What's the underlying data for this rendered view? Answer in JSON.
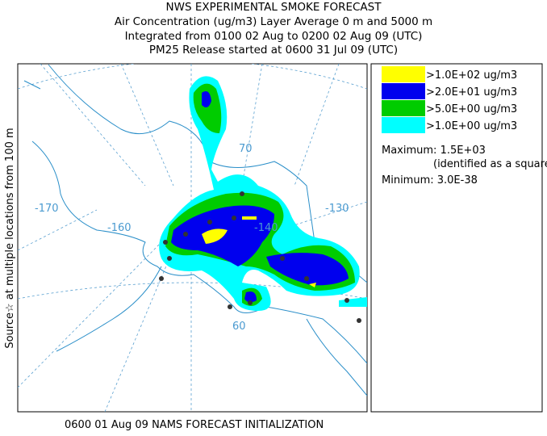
{
  "header": {
    "lines": [
      "NWS EXPERIMENTAL SMOKE FORECAST",
      "Air Concentration (ug/m3) Layer Average    0 m and  5000 m",
      "Integrated from 0100 02 Aug to 0200 02 Aug 09 (UTC)",
      "PM25 Release started at 0600 31 Jul 09 (UTC)"
    ]
  },
  "side_label": "Source☆ at multiple locations from   100 m",
  "legend": {
    "items": [
      ">1.0E+02 ug/m3",
      ">2.0E+01 ug/m3",
      ">5.0E+00 ug/m3",
      ">1.0E+00 ug/m3"
    ],
    "maximum": "Maximum: 1.5E+03",
    "maximum_note": "(identified as a square)",
    "minimum": "Minimum: 3.0E-38"
  },
  "map": {
    "labels": [
      "-170",
      "-160",
      "-140",
      "-130",
      "70",
      "60"
    ]
  },
  "footer": "0600 01 Aug 09 NAMS FORECAST INITIALIZATION"
}
